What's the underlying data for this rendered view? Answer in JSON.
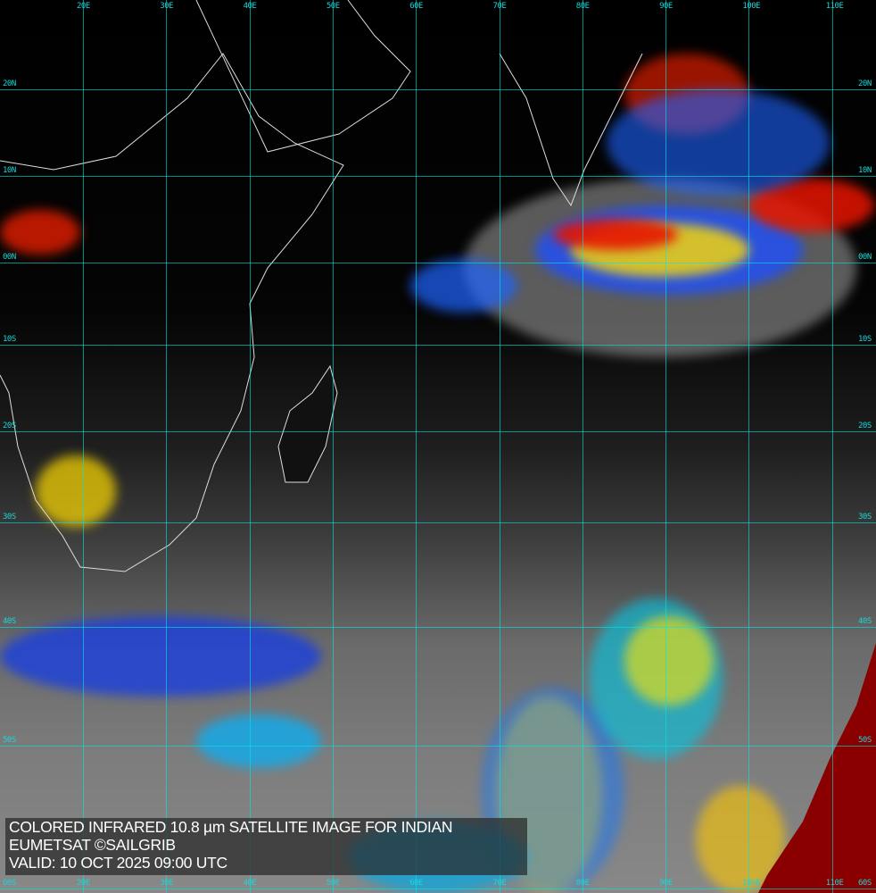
{
  "caption": {
    "line1": "COLORED INFRARED 10.8 µm SATELLITE IMAGE FOR INDIAN",
    "line2": "EUMETSAT ©SAILGRIB",
    "line3": "VALID:  10 OCT 2025 09:00 UTC"
  },
  "grid": {
    "longitudes": [
      "20E",
      "30E",
      "40E",
      "50E",
      "60E",
      "70E",
      "80E",
      "90E",
      "100E",
      "110E"
    ],
    "latitudes": [
      "20N",
      "10N",
      "00N",
      "10S",
      "20S",
      "30S",
      "40S",
      "50S",
      "60S"
    ]
  },
  "colors": {
    "grid": "#19d6d6",
    "coast": "#dddddd",
    "cold_top": "#cc0000",
    "caption_bg": "#282828"
  }
}
